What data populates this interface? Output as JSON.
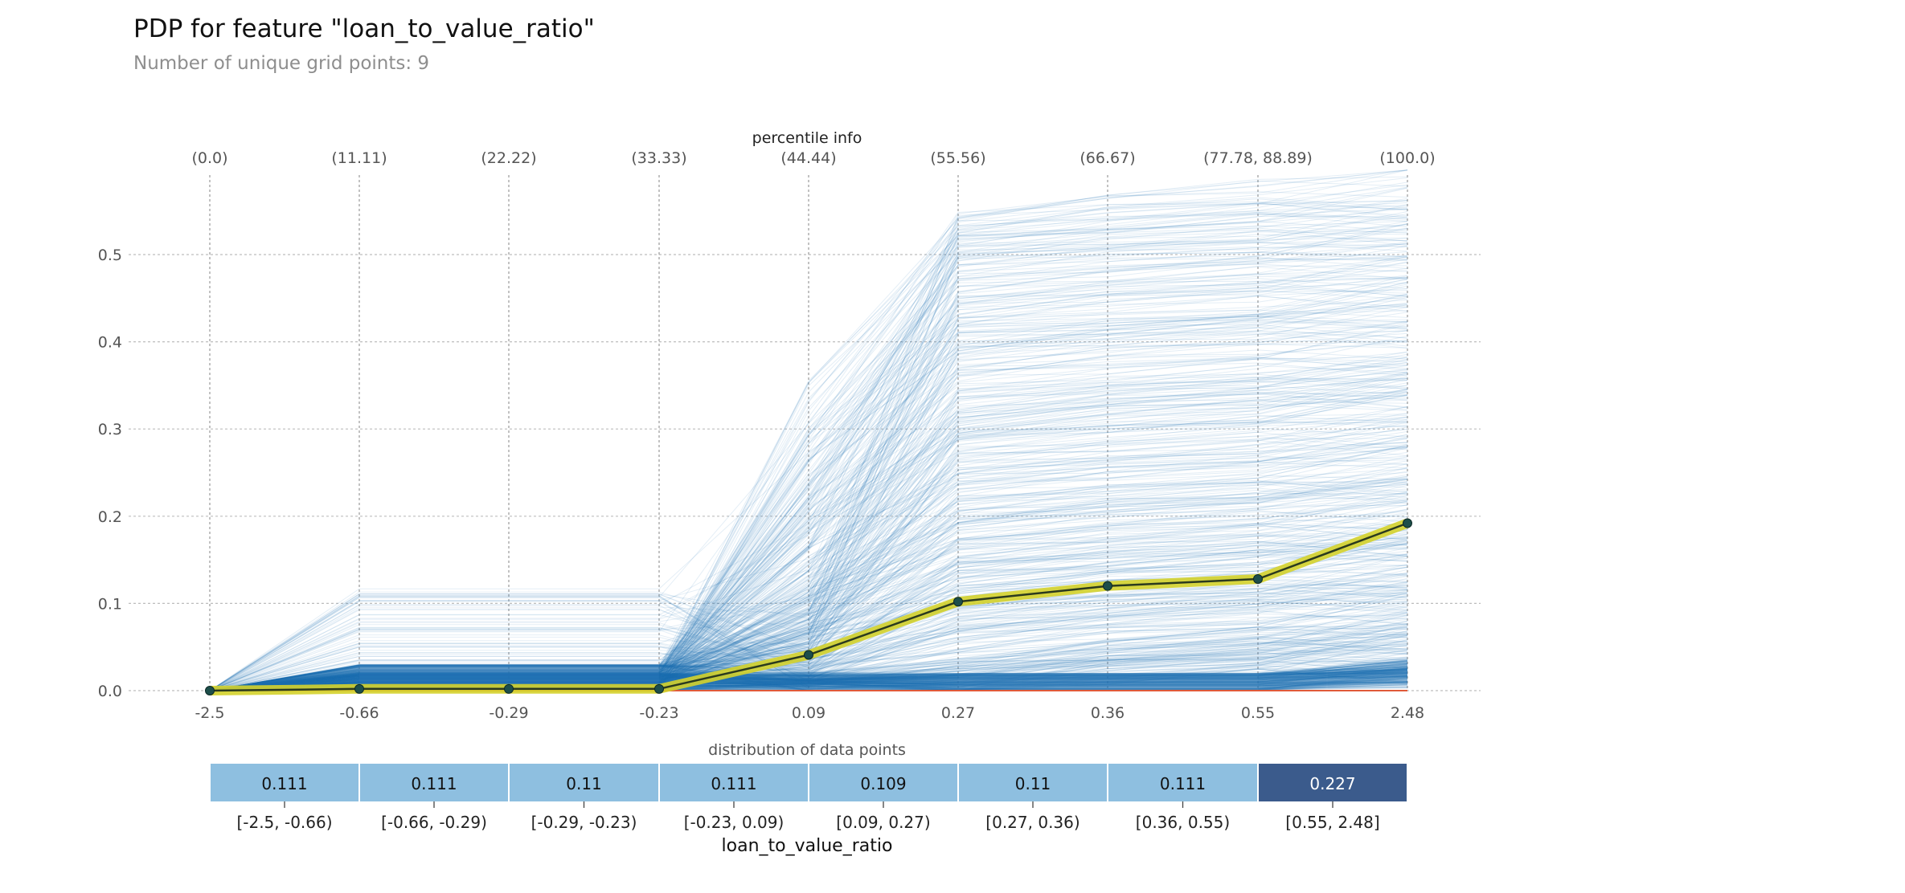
{
  "chart_data": {
    "type": "line",
    "title": "PDP for feature \"loan_to_value_ratio\"",
    "subtitle": "Number of unique grid points: 9",
    "xlabel": "loan_to_value_ratio",
    "ylabel": "",
    "top_axis_label": "percentile info",
    "x_grid_labels": [
      "-2.5",
      "-0.66",
      "-0.29",
      "-0.23",
      "0.09",
      "0.27",
      "0.36",
      "0.55",
      "2.48"
    ],
    "percentile_labels": [
      "(0.0)",
      "(11.11)",
      "(22.22)",
      "(33.33)",
      "(44.44)",
      "(55.56)",
      "(66.67)",
      "(77.78, 88.89)",
      "(100.0)"
    ],
    "y_ticks": [
      "0.0",
      "0.1",
      "0.2",
      "0.3",
      "0.4",
      "0.5"
    ],
    "ylim": [
      0,
      0.6
    ],
    "grid": true,
    "series": [
      {
        "values": [
          0.0,
          0.002,
          0.002,
          0.002,
          0.041,
          0.102,
          0.12,
          0.128,
          0.192
        ]
      }
    ],
    "ice_lines": {
      "description_only": false,
      "baseline": 0.0
    },
    "distribution": {
      "label": "distribution of data points",
      "bins": [
        "[-2.5, -0.66)",
        "[-0.66, -0.29)",
        "[-0.29, -0.23)",
        "[-0.23, 0.09)",
        "[0.09, 0.27)",
        "[0.27, 0.36)",
        "[0.36, 0.55)",
        "[0.55, 2.48]"
      ],
      "values": [
        "0.111",
        "0.111",
        "0.11",
        "0.111",
        "0.109",
        "0.11",
        "0.111",
        "0.227"
      ]
    },
    "colors": {
      "ice": "#1f77b4",
      "pdp_line": "#2b3a1e",
      "pdp_highlight": "#d4d22b",
      "pdp_marker": "#1d4e4a",
      "baseline": "#e05a3a",
      "dist_light": "#8ebfe0",
      "dist_dark": "#3b5b8c"
    }
  }
}
